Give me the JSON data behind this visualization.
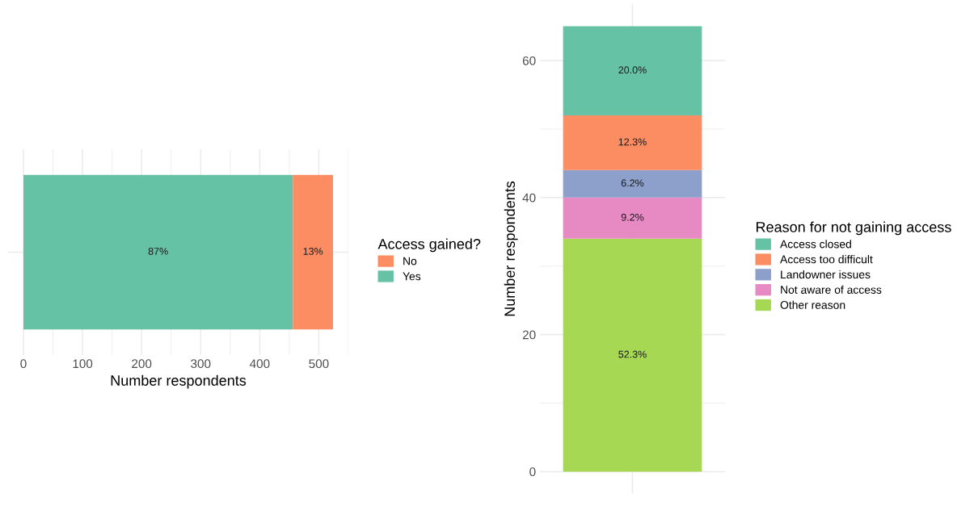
{
  "chart_data": [
    {
      "type": "bar",
      "orientation": "horizontal",
      "stacked": true,
      "categories": [
        null
      ],
      "xlabel": "Number respondents",
      "legend_title": "Access gained?",
      "legend": "right",
      "grid": true,
      "xlim": [
        -26,
        550
      ],
      "xticks": [
        0,
        100,
        200,
        300,
        400,
        500
      ],
      "series": [
        {
          "name": "Yes",
          "color": "#66c2a5",
          "values": [
            456
          ]
        },
        {
          "name": "No",
          "color": "#fc8d62",
          "values": [
            68
          ]
        }
      ],
      "annotations": [
        "87%",
        "13%"
      ]
    },
    {
      "type": "bar",
      "stacked": true,
      "categories": [
        null
      ],
      "ylabel": "Number respondents",
      "legend_title": "Reason for not gaining access",
      "legend": "right",
      "grid": true,
      "ylim": [
        -3.25,
        68.25
      ],
      "yticks": [
        0,
        20,
        40,
        60
      ],
      "series": [
        {
          "name": "Other reason",
          "color": "#a6d854",
          "values": [
            34
          ]
        },
        {
          "name": "Not aware of access",
          "color": "#e78ac3",
          "values": [
            6
          ]
        },
        {
          "name": "Landowner issues",
          "color": "#8da0cb",
          "values": [
            4
          ]
        },
        {
          "name": "Access too difficult",
          "color": "#fc8d62",
          "values": [
            8
          ]
        },
        {
          "name": "Access closed",
          "color": "#66c2a5",
          "values": [
            13
          ]
        }
      ],
      "annotations": [
        "52.3%",
        "9.2%",
        "6.2%",
        "12.3%",
        "20.0%"
      ]
    }
  ]
}
